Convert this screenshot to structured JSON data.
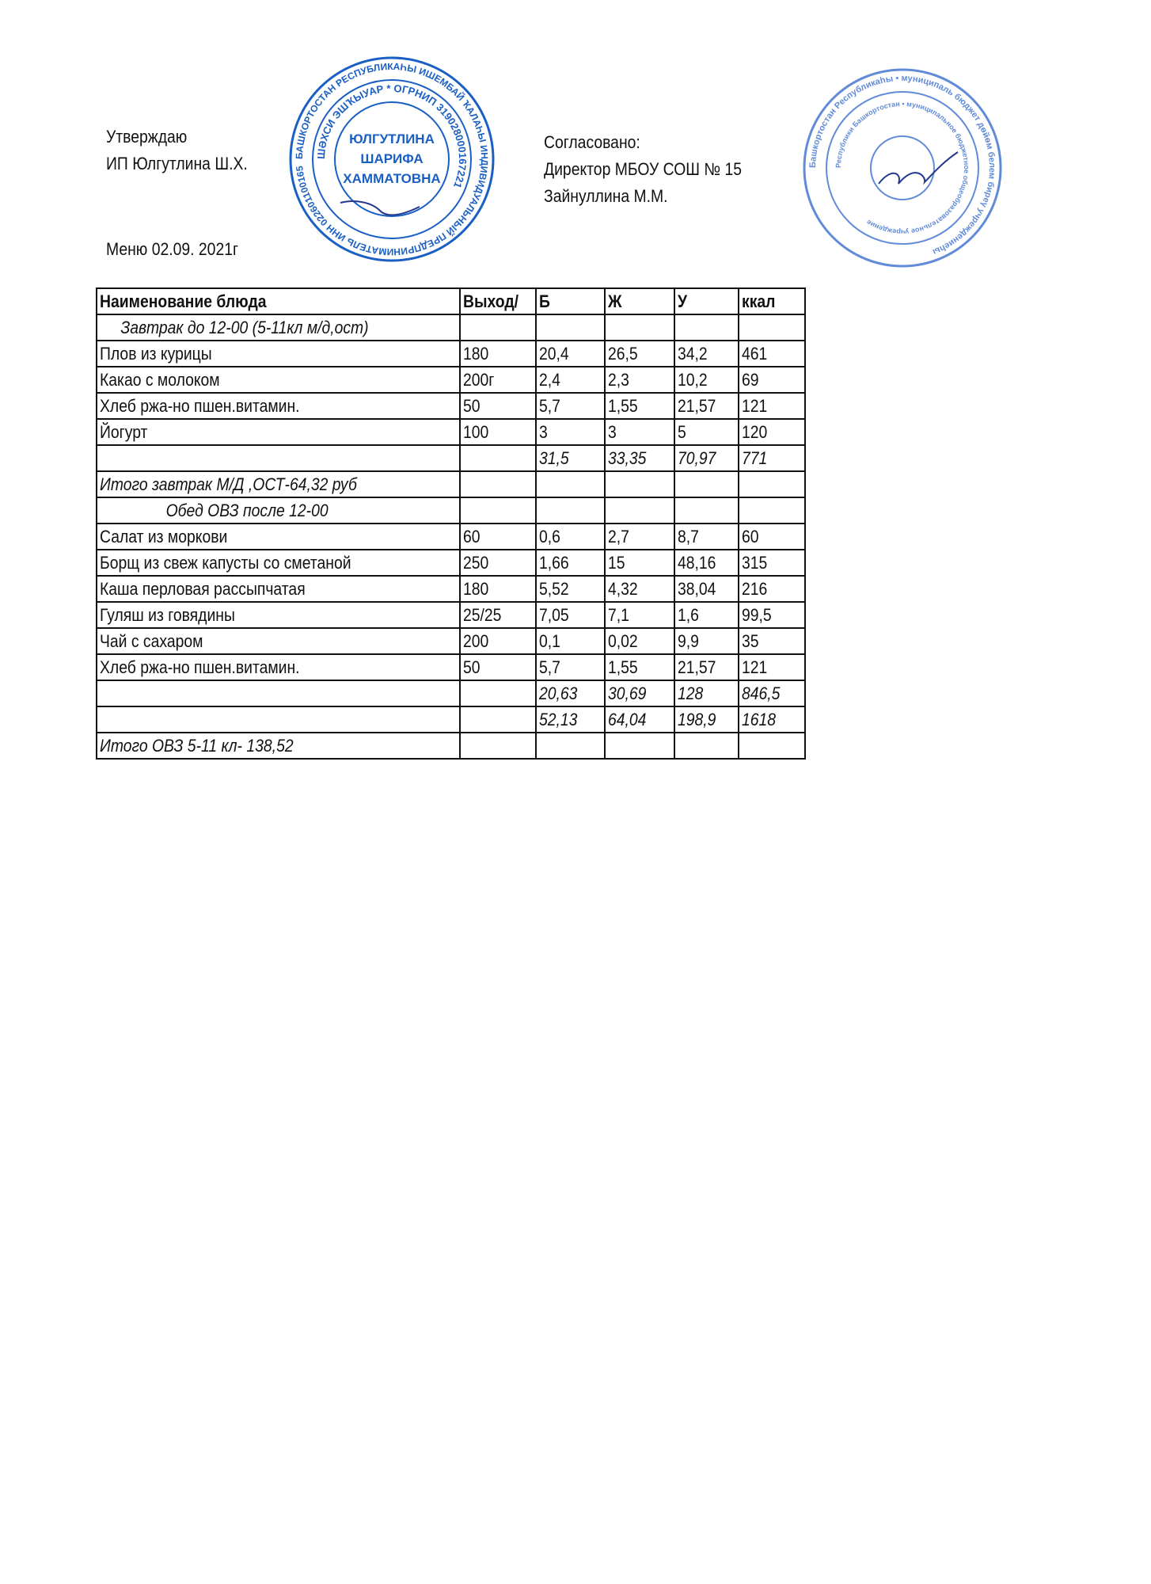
{
  "approval_left": {
    "line1": "Утверждаю",
    "line2": "ИП Юлгутлина Ш.Х."
  },
  "approval_right": {
    "line1": "Согласовано:",
    "line2": "Директор МБОУ СОШ № 15",
    "line3": "Зайнуллина М.М."
  },
  "menu_title": "Меню 02.09. 2021г",
  "stamps": {
    "left": {
      "color": "#1a5fc4",
      "outer_text": "БАШКОРТОСТАН РЕСПУБЛИКАҺЫ ИШЕМБАЙ ҠАЛАҺЫ",
      "ring_text": "ШӘХСИ ЭШҠЫУАР * ОГРНИП 319028000167221",
      "bottom_text": "ИНДИВИДУАЛЬНЫЙ ПРЕДПРИНИМАТЕЛЬ ИНН 022601100165",
      "center_lines": [
        "ЮЛГУТЛИНА",
        "ШАРИФА",
        "ХАММАТОВНА"
      ]
    },
    "right": {
      "color": "#3a6fd0",
      "outer_text": "Башкортостан Республикаһы • муниципаль бюджет дөйөм белем биреү учреждениеһы",
      "inner_text": "Республики Башкортостан • муниципальное бюджетное общеобразовательное учреждение"
    }
  },
  "table": {
    "header": [
      "Наименование блюда",
      "Выход/",
      "Б",
      "Ж",
      "У",
      "ккал"
    ],
    "rows": [
      {
        "cells": [
          "Завтрак до 12-00 (5-11кл м/д,ост)",
          "",
          "",
          "",
          "",
          ""
        ],
        "style": "section"
      },
      {
        "cells": [
          "Плов из курицы",
          "180",
          "20,4",
          "26,5",
          "34,2",
          "461"
        ]
      },
      {
        "cells": [
          "Какао с молоком",
          "200г",
          "2,4",
          "2,3",
          "10,2",
          "69"
        ]
      },
      {
        "cells": [
          "Хлеб ржа-но пшен.витамин.",
          "50",
          "5,7",
          "1,55",
          "21,57",
          "121"
        ]
      },
      {
        "cells": [
          "Йогурт",
          "100",
          "3",
          "3",
          "5",
          "120"
        ]
      },
      {
        "cells": [
          "",
          "",
          "31,5",
          "33,35",
          "70,97",
          "771"
        ],
        "style": "total"
      },
      {
        "cells": [
          "Итого завтрак М/Д ,ОСТ-64,32 руб",
          "",
          "",
          "",
          "",
          ""
        ],
        "style": "total"
      },
      {
        "cells": [
          "Обед ОВЗ после 12-00",
          "",
          "",
          "",
          "",
          ""
        ],
        "style": "section2"
      },
      {
        "cells": [
          "Салат из моркови",
          "60",
          "0,6",
          "2,7",
          "8,7",
          "60"
        ]
      },
      {
        "cells": [
          "Борщ из свеж капусты со сметаной",
          "250",
          "1,66",
          "15",
          "48,16",
          "315"
        ]
      },
      {
        "cells": [
          "Каша перловая рассыпчатая",
          "180",
          "5,52",
          "4,32",
          "38,04",
          "216"
        ]
      },
      {
        "cells": [
          "Гуляш из говядины",
          "25/25",
          "7,05",
          "7,1",
          "1,6",
          "99,5"
        ]
      },
      {
        "cells": [
          "Чай с сахаром",
          "200",
          "0,1",
          "0,02",
          "9,9",
          "35"
        ]
      },
      {
        "cells": [
          "Хлеб ржа-но пшен.витамин.",
          "50",
          "5,7",
          "1,55",
          "21,57",
          "121"
        ]
      },
      {
        "cells": [
          "",
          "",
          "20,63",
          "30,69",
          "128",
          "846,5"
        ],
        "style": "total"
      },
      {
        "cells": [
          "",
          "",
          "52,13",
          "64,04",
          "198,9",
          "1618"
        ],
        "style": "total"
      },
      {
        "cells": [
          "Итого  ОВЗ 5-11  кл- 138,52",
          "",
          "",
          "",
          "",
          ""
        ],
        "style": "total"
      }
    ]
  }
}
